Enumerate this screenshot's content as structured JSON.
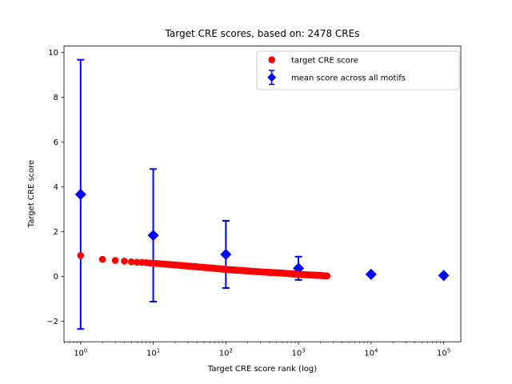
{
  "figure": {
    "background": "#ffffff"
  },
  "chart_data": {
    "type": "scatter",
    "title": "Target CRE scores, based on: 2478 CREs",
    "xlabel": "Target CRE score rank (log)",
    "ylabel": "Target CRE score",
    "x_scale": "log",
    "grid": false,
    "xlim": [
      0.59,
      172000
    ],
    "ylim": [
      -2.91,
      10.29
    ],
    "x_major_ticks": [
      1,
      10,
      100,
      1000,
      10000,
      100000
    ],
    "y_ticks": [
      -2,
      0,
      2,
      4,
      6,
      8,
      10
    ],
    "n_cres": 2478,
    "series": [
      {
        "name": "target CRE score",
        "type": "scatter",
        "marker": "circle",
        "color": "#ff0000",
        "n_points": 2478,
        "note": "scores for ranks 1..2478, decreasing; anchor points read from plot, interpolated log-linearly between anchors",
        "anchors": {
          "rank": [
            1,
            2,
            3,
            4,
            5,
            6,
            8,
            10,
            15,
            20,
            30,
            50,
            70,
            100,
            150,
            200,
            300,
            500,
            700,
            1000,
            1500,
            2000,
            2478
          ],
          "score": [
            0.94,
            0.77,
            0.72,
            0.69,
            0.66,
            0.64,
            0.62,
            0.6,
            0.55,
            0.52,
            0.47,
            0.41,
            0.37,
            0.32,
            0.28,
            0.25,
            0.21,
            0.17,
            0.14,
            0.1,
            0.07,
            0.05,
            0.03
          ]
        }
      },
      {
        "name": "mean score across all motifs",
        "type": "errorbar",
        "marker": "diamond",
        "color": "#0000ff",
        "rank": [
          1,
          10,
          100,
          1000,
          10000,
          100000
        ],
        "mean": [
          3.67,
          1.84,
          0.99,
          0.37,
          0.1,
          0.05
        ],
        "err": [
          6.01,
          2.96,
          1.5,
          0.52,
          0.05,
          0.02
        ]
      }
    ],
    "legend": {
      "position": "upper right",
      "entries": [
        {
          "label": "target CRE score",
          "marker": "red-dot"
        },
        {
          "label": "mean score across all motifs",
          "marker": "blue-diamond-errorbar"
        }
      ]
    }
  }
}
